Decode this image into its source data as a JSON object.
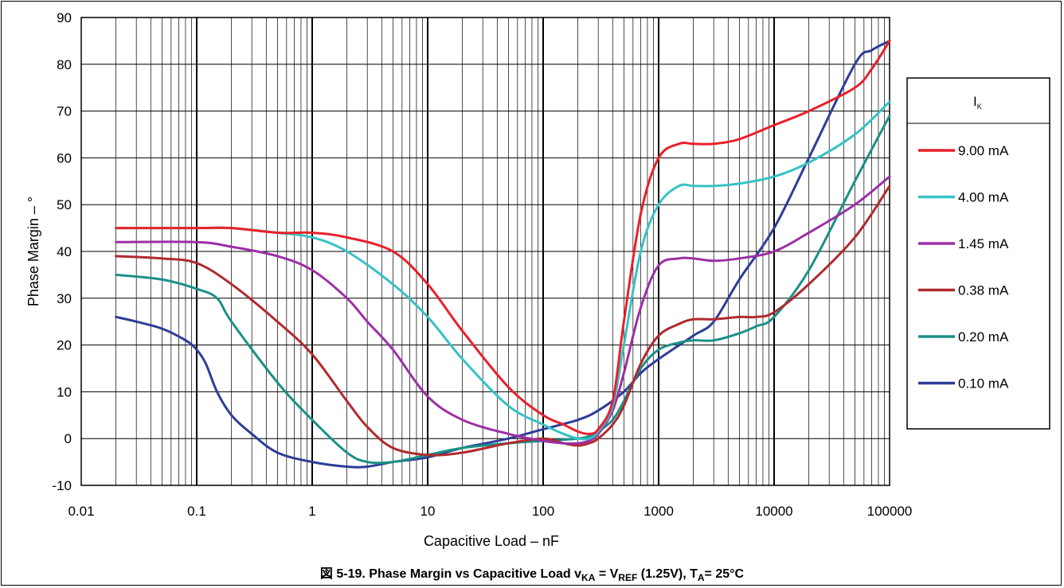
{
  "chart_data": {
    "type": "line",
    "x_scale": "log",
    "xlabel": "Capacitive Load – nF",
    "ylabel": "Phase Margin – °",
    "xlim": [
      0.01,
      100000
    ],
    "ylim": [
      -10,
      90
    ],
    "x_ticks": [
      "0.01",
      "0.1",
      "1",
      "10",
      "100",
      "1000",
      "10000",
      "100000"
    ],
    "y_ticks": [
      "-10",
      "0",
      "10",
      "20",
      "30",
      "40",
      "50",
      "60",
      "70",
      "80",
      "90"
    ],
    "grid": true,
    "legend_position": "right",
    "legend_title": "I",
    "legend_title_sub": "K",
    "series": [
      {
        "name": "9.00 mA",
        "color": "#e8212a",
        "x": [
          0.02,
          0.1,
          0.2,
          0.5,
          1,
          2,
          5,
          10,
          20,
          50,
          100,
          150,
          200,
          250,
          300,
          400,
          500,
          700,
          1000,
          1500,
          2000,
          3000,
          5000,
          10000,
          20000,
          50000,
          70000,
          100000
        ],
        "y": [
          45,
          45,
          45,
          44,
          44,
          43,
          40,
          33,
          23,
          11,
          5,
          3,
          1.5,
          1,
          2,
          8,
          25,
          48,
          60,
          63,
          63,
          63,
          64,
          67,
          70,
          75,
          79,
          85
        ]
      },
      {
        "name": "4.00 mA",
        "color": "#38c1c5",
        "x": [
          0.02,
          0.1,
          0.2,
          0.5,
          1,
          2,
          5,
          10,
          20,
          50,
          100,
          150,
          200,
          250,
          300,
          400,
          500,
          700,
          1000,
          1500,
          2000,
          3000,
          5000,
          10000,
          20000,
          50000,
          100000
        ],
        "y": [
          45,
          45,
          45,
          44,
          43,
          40,
          33,
          26,
          17,
          7,
          3,
          1,
          0,
          0,
          1.5,
          7,
          20,
          40,
          50,
          54,
          54,
          54,
          54.5,
          56,
          59,
          65,
          72
        ]
      },
      {
        "name": "1.45 mA",
        "color": "#9c2fa6",
        "x": [
          0.02,
          0.1,
          0.2,
          0.5,
          1,
          2,
          3,
          5,
          10,
          20,
          50,
          100,
          150,
          200,
          250,
          300,
          400,
          500,
          700,
          1000,
          1500,
          2000,
          3000,
          5000,
          10000,
          20000,
          50000,
          100000
        ],
        "y": [
          42,
          42,
          41,
          39,
          36,
          30,
          25,
          19,
          9,
          4,
          1,
          -0.5,
          -1,
          -1,
          -0.5,
          1,
          6,
          14,
          28,
          37,
          38.5,
          38.5,
          38,
          38.5,
          40,
          44,
          50,
          56
        ]
      },
      {
        "name": "0.38 mA",
        "color": "#b02a2e",
        "x": [
          0.02,
          0.05,
          0.1,
          0.2,
          0.5,
          1,
          2,
          3,
          5,
          10,
          20,
          50,
          100,
          150,
          200,
          250,
          300,
          400,
          500,
          700,
          1000,
          1500,
          2000,
          3000,
          5000,
          7000,
          10000,
          20000,
          50000,
          100000
        ],
        "y": [
          39,
          38.5,
          37.5,
          33,
          25,
          18,
          8,
          2.5,
          -2,
          -3.5,
          -3,
          -1,
          0,
          -1,
          -1.5,
          -1,
          0,
          3,
          7,
          16,
          22,
          24.5,
          25.5,
          25.5,
          26,
          26,
          27,
          33,
          43,
          54
        ]
      },
      {
        "name": "0.20 mA",
        "color": "#1b9088",
        "x": [
          0.02,
          0.05,
          0.1,
          0.15,
          0.2,
          0.5,
          1,
          2,
          3,
          5,
          10,
          20,
          50,
          100,
          200,
          250,
          300,
          400,
          500,
          700,
          1000,
          1500,
          2000,
          3000,
          5000,
          7000,
          10000,
          20000,
          50000,
          100000
        ],
        "y": [
          35,
          34,
          32,
          30,
          25,
          12,
          4,
          -3,
          -5,
          -5,
          -3.5,
          -2,
          -1,
          -0.5,
          0,
          0.5,
          1.5,
          4,
          8,
          15,
          19,
          20.5,
          21,
          21,
          22.5,
          24,
          26,
          36,
          55,
          69
        ]
      },
      {
        "name": "0.10 mA",
        "color": "#2e3d98",
        "x": [
          0.02,
          0.03,
          0.05,
          0.08,
          0.1,
          0.12,
          0.15,
          0.2,
          0.3,
          0.5,
          1,
          2,
          3,
          5,
          10,
          20,
          50,
          100,
          200,
          300,
          500,
          700,
          1000,
          2000,
          3000,
          5000,
          10000,
          20000,
          50000,
          70000,
          100000
        ],
        "y": [
          26,
          25,
          23.5,
          21,
          19,
          16,
          10,
          5,
          1,
          -3,
          -5,
          -6,
          -6,
          -5,
          -4,
          -2,
          0,
          2,
          4,
          6,
          10,
          14,
          17,
          22,
          25,
          34,
          45,
          60,
          80,
          83,
          85
        ]
      }
    ]
  },
  "caption": {
    "prefix": "図 5-19. Phase Margin vs Capacitive Load v",
    "sub1": "KA",
    "mid1": " = V",
    "sub2": "REF",
    "mid2": " (1.25V), T",
    "sub3": "A",
    "suffix": "= 25°C"
  }
}
